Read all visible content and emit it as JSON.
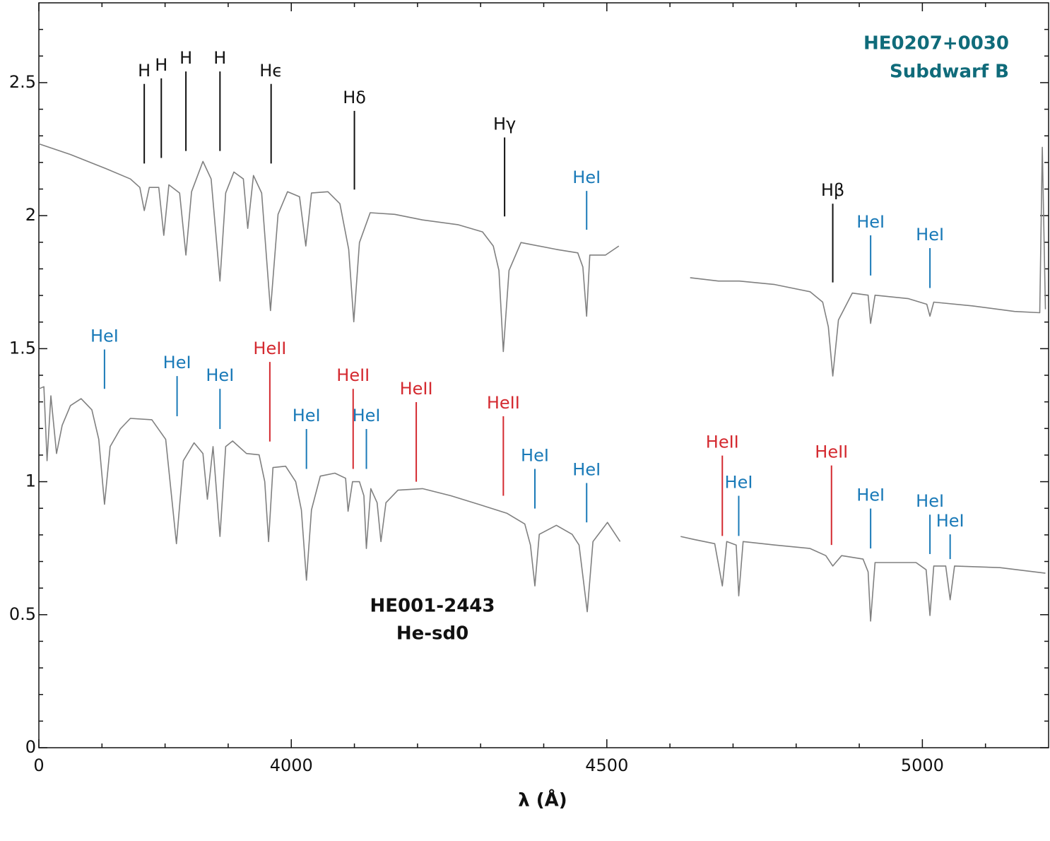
{
  "chart_data": {
    "type": "line",
    "xlabel": "λ (Å)",
    "xlim": [
      3600,
      5200
    ],
    "xticks": [
      {
        "value": 3600,
        "label": "0"
      },
      4000,
      4500,
      5000
    ],
    "x_minor_ticks": [
      3700,
      3800,
      3900,
      4100,
      4200,
      4300,
      4400,
      4600,
      4700,
      4800,
      4900,
      5100
    ],
    "ylim": [
      0,
      2.8
    ],
    "yticks": [
      0,
      0.5,
      1.0,
      1.5,
      2.0,
      2.5
    ],
    "y_minor_ticks": [
      0.1,
      0.2,
      0.3,
      0.4,
      0.6,
      0.7,
      0.8,
      0.9,
      1.1,
      1.2,
      1.3,
      1.4,
      1.6,
      1.7,
      1.8,
      1.9,
      2.1,
      2.2,
      2.3,
      2.4,
      2.6,
      2.7
    ],
    "star_labels": [
      [
        "HE0207+0030",
        "Subdwarf B"
      ],
      [
        "HE001-2443",
        "He-sd0"
      ]
    ],
    "series": [
      {
        "color": "#808080",
        "x": [
          3600,
          3650,
          3706,
          3745,
          3760,
          3767,
          3775,
          3790,
          3798,
          3806,
          3823,
          3833,
          3842,
          3860,
          3873,
          3887,
          3896,
          3909,
          3924,
          3931,
          3940,
          3953,
          3967,
          3979,
          3994,
          4013,
          4023,
          4032,
          4058,
          4077,
          4091,
          4099,
          4108,
          4125,
          4164,
          4208,
          4264,
          4303,
          4320,
          4329,
          4336,
          4345,
          4364,
          4420,
          4454,
          4462,
          4468,
          4473,
          4498,
          4519,
          4575,
          4632,
          4677,
          4710,
          4766,
          4822,
          4842,
          4851,
          4858,
          4867,
          4889,
          4914,
          4918,
          4925,
          4978,
          5007,
          5012,
          5018,
          5079,
          5146,
          5186,
          5190,
          5195
        ],
        "values": [
          2.27,
          2.23,
          2.177,
          2.138,
          2.106,
          2.019,
          2.106,
          2.106,
          1.926,
          2.116,
          2.085,
          1.852,
          2.09,
          2.204,
          2.138,
          1.754,
          2.085,
          2.164,
          2.138,
          1.952,
          2.151,
          2.085,
          1.643,
          2.005,
          2.09,
          2.071,
          1.886,
          2.085,
          2.09,
          2.045,
          1.873,
          1.601,
          1.899,
          2.011,
          2.005,
          1.984,
          1.966,
          1.939,
          1.886,
          1.794,
          1.489,
          1.794,
          1.899,
          1.873,
          1.86,
          1.807,
          1.622,
          1.852,
          1.852,
          1.886,
          null,
          1.767,
          1.754,
          1.754,
          1.741,
          1.714,
          1.675,
          1.582,
          1.397,
          1.608,
          1.709,
          1.701,
          1.595,
          1.701,
          1.688,
          1.667,
          1.622,
          1.675,
          1.661,
          1.64,
          1.635,
          2.257,
          1.648
        ]
      },
      {
        "color": "#808080",
        "x": [
          3600,
          3608,
          3613,
          3619,
          3628,
          3637,
          3650,
          3667,
          3684,
          3695,
          3704,
          3713,
          3729,
          3745,
          3779,
          3801,
          3818,
          3829,
          3846,
          3860,
          3867,
          3876,
          3887,
          3896,
          3907,
          3929,
          3949,
          3958,
          3964,
          3971,
          3991,
          4007,
          4016,
          4024,
          4032,
          4046,
          4069,
          4086,
          4090,
          4097,
          4108,
          4115,
          4119,
          4126,
          4136,
          4142,
          4150,
          4169,
          4208,
          4253,
          4297,
          4342,
          4370,
          4379,
          4386,
          4393,
          4420,
          4445,
          4456,
          4469,
          4478,
          4501,
          4521,
          4570,
          4617,
          4638,
          4671,
          4683,
          4690,
          4705,
          4709,
          4716,
          4766,
          4822,
          4847,
          4858,
          4872,
          4906,
          4914,
          4918,
          4925,
          4990,
          5006,
          5012,
          5018,
          5037,
          5044,
          5051,
          5123,
          5195
        ],
        "values": [
          1.349,
          1.357,
          1.079,
          1.323,
          1.106,
          1.212,
          1.286,
          1.312,
          1.27,
          1.159,
          0.915,
          1.132,
          1.198,
          1.238,
          1.233,
          1.159,
          0.767,
          1.079,
          1.146,
          1.106,
          0.934,
          1.132,
          0.794,
          1.132,
          1.153,
          1.106,
          1.101,
          1.0,
          0.775,
          1.053,
          1.058,
          1.0,
          0.894,
          0.63,
          0.894,
          1.021,
          1.032,
          1.013,
          0.889,
          1.0,
          1.0,
          0.947,
          0.749,
          0.974,
          0.921,
          0.775,
          0.921,
          0.968,
          0.974,
          0.947,
          0.915,
          0.881,
          0.841,
          0.762,
          0.608,
          0.802,
          0.836,
          0.802,
          0.762,
          0.511,
          0.775,
          0.847,
          0.775,
          null,
          0.794,
          0.783,
          0.767,
          0.608,
          0.775,
          0.762,
          0.571,
          0.775,
          0.762,
          0.749,
          0.722,
          0.683,
          0.722,
          0.709,
          0.661,
          0.476,
          0.696,
          0.696,
          0.669,
          0.497,
          0.683,
          0.683,
          0.556,
          0.683,
          0.677,
          0.656
        ]
      }
    ],
    "annotations": [
      {
        "text": "H",
        "x": 3767,
        "y": 2.495,
        "y_end": 2.196,
        "color": "#111111"
      },
      {
        "text": "H",
        "x": 3794,
        "y": 2.516,
        "y_end": 2.217,
        "color": "#111111"
      },
      {
        "text": "H",
        "x": 3833,
        "y": 2.542,
        "y_end": 2.243,
        "color": "#111111"
      },
      {
        "text": "H",
        "x": 3887,
        "y": 2.542,
        "y_end": 2.243,
        "color": "#111111"
      },
      {
        "text": "Hϵ",
        "x": 3968,
        "y": 2.495,
        "y_end": 2.196,
        "color": "#111111"
      },
      {
        "text": "Hδ",
        "x": 4100,
        "y": 2.394,
        "y_end": 2.098,
        "color": "#111111"
      },
      {
        "text": "Hγ",
        "x": 4338,
        "y": 2.294,
        "y_end": 1.997,
        "color": "#111111"
      },
      {
        "text": "HeI",
        "x": 4468,
        "y": 2.093,
        "y_end": 1.947,
        "color": "#1a7ab8"
      },
      {
        "text": "Hβ",
        "x": 4858,
        "y": 2.045,
        "y_end": 1.749,
        "color": "#111111"
      },
      {
        "text": "HeI",
        "x": 4918,
        "y": 1.926,
        "y_end": 1.775,
        "color": "#1a7ab8"
      },
      {
        "text": "HeI",
        "x": 5012,
        "y": 1.878,
        "y_end": 1.728,
        "color": "#1a7ab8"
      },
      {
        "text": "HeI",
        "x": 3704,
        "y": 1.497,
        "y_end": 1.349,
        "color": "#1a7ab8"
      },
      {
        "text": "HeI",
        "x": 3819,
        "y": 1.397,
        "y_end": 1.246,
        "color": "#1a7ab8"
      },
      {
        "text": "HeI",
        "x": 3887,
        "y": 1.349,
        "y_end": 1.198,
        "color": "#1a7ab8"
      },
      {
        "text": "HeII",
        "x": 3966,
        "y": 1.45,
        "y_end": 1.151,
        "color": "#d42a30"
      },
      {
        "text": "HeI",
        "x": 4024,
        "y": 1.198,
        "y_end": 1.048,
        "color": "#1a7ab8"
      },
      {
        "text": "HeII",
        "x": 4098,
        "y": 1.349,
        "y_end": 1.048,
        "color": "#d42a30"
      },
      {
        "text": "HeI",
        "x": 4119,
        "y": 1.198,
        "y_end": 1.048,
        "color": "#1a7ab8"
      },
      {
        "text": "HeII",
        "x": 4198,
        "y": 1.299,
        "y_end": 1.0,
        "color": "#d42a30"
      },
      {
        "text": "HeII",
        "x": 4336,
        "y": 1.246,
        "y_end": 0.947,
        "color": "#d42a30"
      },
      {
        "text": "HeI",
        "x": 4386,
        "y": 1.048,
        "y_end": 0.899,
        "color": "#1a7ab8"
      },
      {
        "text": "HeI",
        "x": 4468,
        "y": 0.995,
        "y_end": 0.847,
        "color": "#1a7ab8"
      },
      {
        "text": "HeII",
        "x": 4683,
        "y": 1.098,
        "y_end": 0.796,
        "color": "#d42a30"
      },
      {
        "text": "HeI",
        "x": 4709,
        "y": 0.947,
        "y_end": 0.796,
        "color": "#1a7ab8"
      },
      {
        "text": "HeII",
        "x": 4856,
        "y": 1.061,
        "y_end": 0.762,
        "color": "#d42a30"
      },
      {
        "text": "HeI",
        "x": 4918,
        "y": 0.899,
        "y_end": 0.749,
        "color": "#1a7ab8"
      },
      {
        "text": "HeI",
        "x": 5012,
        "y": 0.876,
        "y_end": 0.728,
        "color": "#1a7ab8"
      },
      {
        "text": "HeI",
        "x": 5044,
        "y": 0.802,
        "y_end": 0.709,
        "color": "#1a7ab8"
      }
    ]
  }
}
